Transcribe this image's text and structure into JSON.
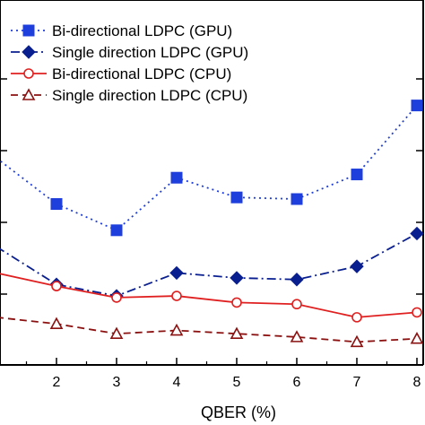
{
  "chart_data": {
    "type": "line",
    "title": "",
    "xlabel": "QBER (%)",
    "ylabel": "",
    "x": [
      1,
      2,
      3,
      4,
      5,
      6,
      7,
      8
    ],
    "x_ticks": [
      2,
      3,
      4,
      5,
      6,
      7,
      8
    ],
    "x_tick_labels": [
      "2",
      "3",
      "4",
      "5",
      "6",
      "7",
      "8"
    ],
    "xlim": [
      1,
      8
    ],
    "ylim": [
      0,
      100
    ],
    "grid": false,
    "legend_position": "top-left",
    "series": [
      {
        "name": "Bi-directional LDPC (GPU)",
        "values": [
          63,
          49,
          41,
          57,
          51,
          50.5,
          58,
          79
        ],
        "color": "#1f3fdc",
        "line_style": "dotted",
        "marker": "filled-square"
      },
      {
        "name": "Single direction LDPC (GPU)",
        "values": [
          36,
          24.5,
          21,
          28,
          26.5,
          26,
          30,
          40
        ],
        "color": "#0a1f8f",
        "line_style": "dash-dot",
        "marker": "filled-diamond"
      },
      {
        "name": "Bi-directional LDPC (CPU)",
        "values": [
          28,
          24,
          20.5,
          21,
          19,
          18.5,
          14.5,
          16
        ],
        "color": "#e02020",
        "line_style": "solid",
        "marker": "open-circle"
      },
      {
        "name": "Single direction LDPC (CPU)",
        "values": [
          14.5,
          12.5,
          9.5,
          10.5,
          9.5,
          8.5,
          7,
          8
        ],
        "color": "#8b1010",
        "line_style": "dashed",
        "marker": "open-triangle"
      }
    ]
  }
}
